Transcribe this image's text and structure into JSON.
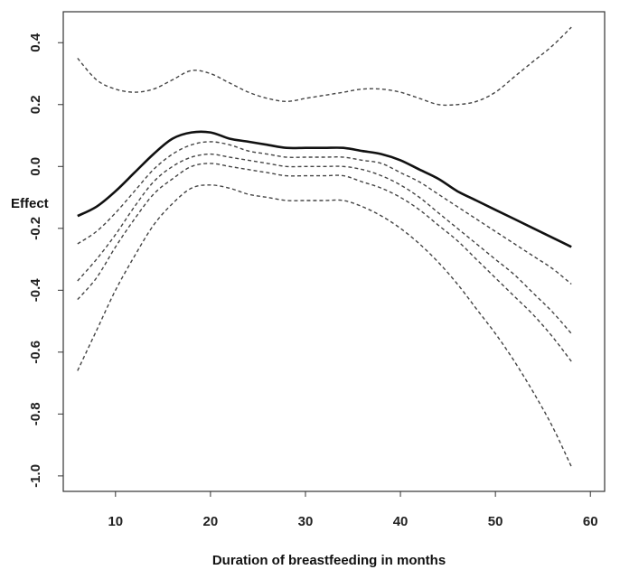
{
  "chart_data": {
    "type": "line",
    "xlabel": "Duration of breastfeeding in months",
    "ylabel": "Effect",
    "xlim": [
      4.5,
      61.5
    ],
    "ylim": [
      -1.05,
      0.5
    ],
    "x_ticks": [
      10,
      20,
      30,
      40,
      50,
      60
    ],
    "y_ticks": [
      -1.0,
      -0.8,
      -0.6,
      -0.4,
      -0.2,
      0.0,
      0.2,
      0.4
    ],
    "grid": false,
    "series": [
      {
        "style": "solid",
        "x": [
          6,
          8,
          10,
          12,
          14,
          16,
          18,
          20,
          22,
          24,
          26,
          28,
          30,
          32,
          34,
          36,
          38,
          40,
          42,
          44,
          46,
          48,
          50,
          52,
          54,
          56,
          58
        ],
        "y": [
          -0.16,
          -0.13,
          -0.08,
          -0.02,
          0.04,
          0.09,
          0.11,
          0.11,
          0.09,
          0.08,
          0.07,
          0.06,
          0.06,
          0.06,
          0.06,
          0.05,
          0.04,
          0.02,
          -0.01,
          -0.04,
          -0.08,
          -0.11,
          -0.14,
          -0.17,
          -0.2,
          -0.23,
          -0.26
        ]
      },
      {
        "style": "dashed",
        "x": [
          6,
          8,
          10,
          12,
          14,
          16,
          18,
          20,
          22,
          24,
          26,
          28,
          30,
          32,
          34,
          36,
          38,
          40,
          42,
          44,
          46,
          48,
          50,
          52,
          54,
          56,
          58
        ],
        "y": [
          -0.25,
          -0.21,
          -0.15,
          -0.08,
          -0.01,
          0.04,
          0.07,
          0.08,
          0.07,
          0.05,
          0.04,
          0.03,
          0.03,
          0.03,
          0.03,
          0.02,
          0.01,
          -0.02,
          -0.05,
          -0.09,
          -0.13,
          -0.17,
          -0.21,
          -0.25,
          -0.29,
          -0.33,
          -0.38
        ]
      },
      {
        "style": "dashed",
        "x": [
          6,
          8,
          10,
          12,
          14,
          16,
          18,
          20,
          22,
          24,
          26,
          28,
          30,
          32,
          34,
          36,
          38,
          40,
          42,
          44,
          46,
          48,
          50,
          52,
          54,
          56,
          58
        ],
        "y": [
          -0.37,
          -0.3,
          -0.22,
          -0.13,
          -0.05,
          0.0,
          0.03,
          0.04,
          0.03,
          0.02,
          0.01,
          0.0,
          0.0,
          0.0,
          0.0,
          -0.01,
          -0.03,
          -0.06,
          -0.1,
          -0.15,
          -0.2,
          -0.25,
          -0.3,
          -0.35,
          -0.41,
          -0.47,
          -0.54
        ]
      },
      {
        "style": "dashed",
        "x": [
          6,
          8,
          10,
          12,
          14,
          16,
          18,
          20,
          22,
          24,
          26,
          28,
          30,
          32,
          34,
          36,
          38,
          40,
          42,
          44,
          46,
          48,
          50,
          52,
          54,
          56,
          58
        ],
        "y": [
          -0.43,
          -0.36,
          -0.26,
          -0.17,
          -0.09,
          -0.04,
          0.0,
          0.01,
          0.0,
          -0.01,
          -0.02,
          -0.03,
          -0.03,
          -0.03,
          -0.03,
          -0.05,
          -0.07,
          -0.1,
          -0.14,
          -0.19,
          -0.24,
          -0.3,
          -0.36,
          -0.42,
          -0.48,
          -0.55,
          -0.63
        ]
      },
      {
        "style": "dashed",
        "x": [
          6,
          8,
          10,
          12,
          14,
          16,
          18,
          20,
          22,
          24,
          26,
          28,
          30,
          32,
          34,
          36,
          38,
          40,
          42,
          44,
          46,
          48,
          50,
          52,
          54,
          56,
          58
        ],
        "y": [
          -0.66,
          -0.53,
          -0.4,
          -0.29,
          -0.19,
          -0.12,
          -0.07,
          -0.06,
          -0.07,
          -0.09,
          -0.1,
          -0.11,
          -0.11,
          -0.11,
          -0.11,
          -0.13,
          -0.16,
          -0.2,
          -0.25,
          -0.31,
          -0.38,
          -0.46,
          -0.54,
          -0.63,
          -0.73,
          -0.84,
          -0.97
        ]
      },
      {
        "style": "dashed",
        "x": [
          6,
          8,
          10,
          12,
          14,
          16,
          18,
          20,
          22,
          24,
          26,
          28,
          30,
          32,
          34,
          36,
          38,
          40,
          42,
          44,
          46,
          48,
          50,
          52,
          54,
          56,
          58
        ],
        "y": [
          0.35,
          0.28,
          0.25,
          0.24,
          0.25,
          0.28,
          0.31,
          0.3,
          0.27,
          0.24,
          0.22,
          0.21,
          0.22,
          0.23,
          0.24,
          0.25,
          0.25,
          0.24,
          0.22,
          0.2,
          0.2,
          0.21,
          0.24,
          0.29,
          0.34,
          0.39,
          0.45
        ]
      }
    ]
  }
}
